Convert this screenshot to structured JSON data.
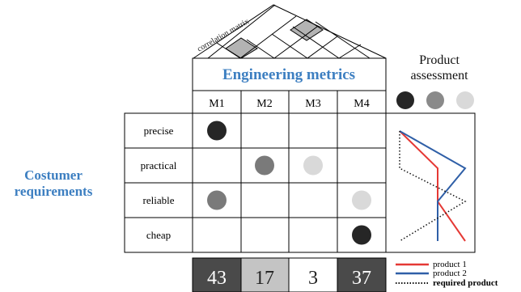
{
  "roof": {
    "label": "correlation matrix",
    "shaded_fill": "#b3b3b3"
  },
  "header": {
    "title": "Engineering metrics",
    "title_color": "#3d7fc1"
  },
  "metrics": [
    "M1",
    "M2",
    "M3",
    "M4"
  ],
  "assessment": {
    "title_line1": "Product",
    "title_line2": "assessment",
    "circles": [
      "#262626",
      "#8a8a8a",
      "#d9d9d9"
    ]
  },
  "customer_label": {
    "line1": "Costumer",
    "line2": "requirements",
    "color": "#3d7fc1"
  },
  "requirements": [
    "precise",
    "practical",
    "reliable",
    "cheap"
  ],
  "relations": [
    {
      "row": 0,
      "col": 0,
      "color": "#262626"
    },
    {
      "row": 1,
      "col": 1,
      "color": "#7a7a7a"
    },
    {
      "row": 1,
      "col": 2,
      "color": "#d9d9d9"
    },
    {
      "row": 2,
      "col": 0,
      "color": "#7a7a7a"
    },
    {
      "row": 2,
      "col": 3,
      "color": "#d9d9d9"
    },
    {
      "row": 3,
      "col": 3,
      "color": "#262626"
    }
  ],
  "totals": [
    {
      "value": "43",
      "bg": "#4a4a4a",
      "fg": "#ffffff"
    },
    {
      "value": "17",
      "bg": "#c4c4c4",
      "fg": "#222222"
    },
    {
      "value": "3",
      "bg": "#ffffff",
      "fg": "#222222"
    },
    {
      "value": "37",
      "bg": "#4a4a4a",
      "fg": "#ffffff"
    }
  ],
  "legend": {
    "items": [
      {
        "label": "product 1",
        "color": "#e53935",
        "style": "solid"
      },
      {
        "label": "product 2",
        "color": "#2f5fa7",
        "style": "solid"
      },
      {
        "label": "required product",
        "color": "#111111",
        "style": "dotted"
      }
    ]
  }
}
